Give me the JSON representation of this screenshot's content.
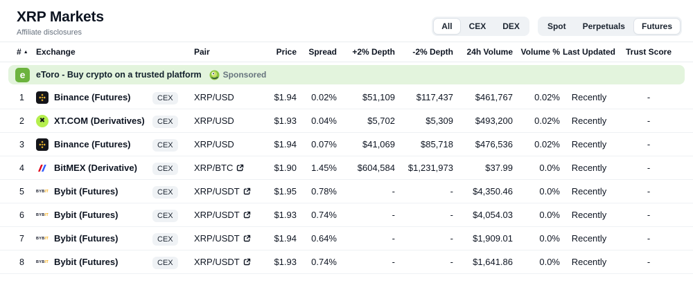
{
  "header": {
    "title": "XRP Markets",
    "subtitle": "Affiliate disclosures",
    "filter_groups": [
      {
        "name": "market-type",
        "options": [
          {
            "label": "All",
            "selected": true
          },
          {
            "label": "CEX",
            "selected": false
          },
          {
            "label": "DEX",
            "selected": false
          }
        ]
      },
      {
        "name": "contract-type",
        "options": [
          {
            "label": "Spot",
            "selected": false
          },
          {
            "label": "Perpetuals",
            "selected": false
          },
          {
            "label": "Futures",
            "selected": true
          }
        ]
      }
    ]
  },
  "sponsor": {
    "logo_icon": "etoro-logo",
    "logo_letter": "e",
    "text": "eToro - Buy crypto on a trusted platform",
    "badge_icon": "gecko-icon",
    "label": "Sponsored"
  },
  "icons": {
    "bybit_wordmark_dark": "BYB",
    "bybit_wordmark_accent": "IT",
    "xt_glyph": "✖",
    "sort_asc": "▲"
  },
  "colors": {
    "sponsor_bg": "#e3f4dd",
    "etoro_green": "#6cb33e",
    "binance_yellow": "#f3ba2f",
    "xt_green": "#b5ef4e",
    "bitmex_red": "#e2001a",
    "bitmex_blue": "#2f5aff",
    "bybit_yellow": "#f7a600",
    "badge_bg": "#eff2f5",
    "text_dark": "#0d1421"
  },
  "table": {
    "columns": [
      {
        "key": "rank",
        "label": "#",
        "align": "left",
        "sorted": true
      },
      {
        "key": "exchange",
        "label": "Exchange",
        "align": "left",
        "sorted": false
      },
      {
        "key": "type",
        "label": "",
        "align": "left",
        "sorted": false
      },
      {
        "key": "pair",
        "label": "Pair",
        "align": "left",
        "sorted": false
      },
      {
        "key": "price",
        "label": "Price",
        "align": "right",
        "sorted": false
      },
      {
        "key": "spread",
        "label": "Spread",
        "align": "right",
        "sorted": false
      },
      {
        "key": "depth_up",
        "label": "+2% Depth",
        "align": "right",
        "sorted": false
      },
      {
        "key": "depth_down",
        "label": "-2% Depth",
        "align": "right",
        "sorted": false
      },
      {
        "key": "volume_24h",
        "label": "24h Volume",
        "align": "right",
        "sorted": false
      },
      {
        "key": "volume_pct",
        "label": "Volume %",
        "align": "right",
        "sorted": false
      },
      {
        "key": "last_updated",
        "label": "Last Updated",
        "align": "center",
        "sorted": false
      },
      {
        "key": "trust_score",
        "label": "Trust Score",
        "align": "center",
        "sorted": false
      }
    ],
    "rows": [
      {
        "rank": "1",
        "logo": "binance",
        "name": "Binance (Futures)",
        "type": "CEX",
        "pair": "XRP/USD",
        "pair_external": false,
        "price": "$1.94",
        "spread": "0.02%",
        "depth_up": "$51,109",
        "depth_down": "$117,437",
        "volume_24h": "$461,767",
        "volume_pct": "0.02%",
        "last_updated": "Recently",
        "trust_score": "-"
      },
      {
        "rank": "2",
        "logo": "xt",
        "name": "XT.COM (Derivatives)",
        "type": "CEX",
        "pair": "XRP/USD",
        "pair_external": false,
        "price": "$1.93",
        "spread": "0.04%",
        "depth_up": "$5,702",
        "depth_down": "$5,309",
        "volume_24h": "$493,200",
        "volume_pct": "0.02%",
        "last_updated": "Recently",
        "trust_score": "-"
      },
      {
        "rank": "3",
        "logo": "binance",
        "name": "Binance (Futures)",
        "type": "CEX",
        "pair": "XRP/USD",
        "pair_external": false,
        "price": "$1.94",
        "spread": "0.07%",
        "depth_up": "$41,069",
        "depth_down": "$85,718",
        "volume_24h": "$476,536",
        "volume_pct": "0.02%",
        "last_updated": "Recently",
        "trust_score": "-"
      },
      {
        "rank": "4",
        "logo": "bitmex",
        "name": "BitMEX (Derivative)",
        "type": "CEX",
        "pair": "XRP/BTC",
        "pair_external": true,
        "price": "$1.90",
        "spread": "1.45%",
        "depth_up": "$604,584",
        "depth_down": "$1,231,973",
        "volume_24h": "$37.99",
        "volume_pct": "0.0%",
        "last_updated": "Recently",
        "trust_score": "-"
      },
      {
        "rank": "5",
        "logo": "bybit",
        "name": "Bybit (Futures)",
        "type": "CEX",
        "pair": "XRP/USDT",
        "pair_external": true,
        "price": "$1.95",
        "spread": "0.78%",
        "depth_up": "-",
        "depth_down": "-",
        "volume_24h": "$4,350.46",
        "volume_pct": "0.0%",
        "last_updated": "Recently",
        "trust_score": "-"
      },
      {
        "rank": "6",
        "logo": "bybit",
        "name": "Bybit (Futures)",
        "type": "CEX",
        "pair": "XRP/USDT",
        "pair_external": true,
        "price": "$1.93",
        "spread": "0.74%",
        "depth_up": "-",
        "depth_down": "-",
        "volume_24h": "$4,054.03",
        "volume_pct": "0.0%",
        "last_updated": "Recently",
        "trust_score": "-"
      },
      {
        "rank": "7",
        "logo": "bybit",
        "name": "Bybit (Futures)",
        "type": "CEX",
        "pair": "XRP/USDT",
        "pair_external": true,
        "price": "$1.94",
        "spread": "0.64%",
        "depth_up": "-",
        "depth_down": "-",
        "volume_24h": "$1,909.01",
        "volume_pct": "0.0%",
        "last_updated": "Recently",
        "trust_score": "-"
      },
      {
        "rank": "8",
        "logo": "bybit",
        "name": "Bybit (Futures)",
        "type": "CEX",
        "pair": "XRP/USDT",
        "pair_external": true,
        "price": "$1.93",
        "spread": "0.74%",
        "depth_up": "-",
        "depth_down": "-",
        "volume_24h": "$1,641.86",
        "volume_pct": "0.0%",
        "last_updated": "Recently",
        "trust_score": "-"
      }
    ]
  }
}
